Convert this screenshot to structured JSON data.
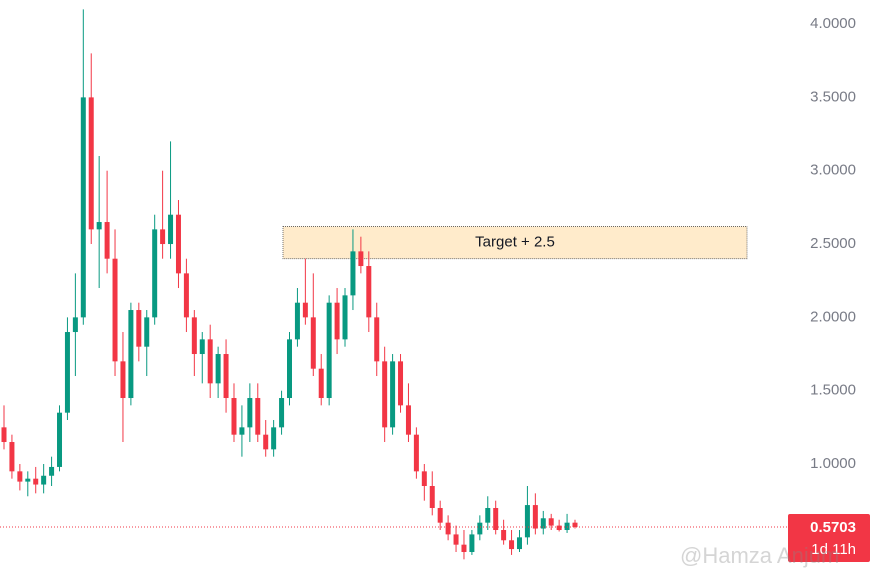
{
  "chart_data": {
    "type": "candlestick",
    "up_color": "#089981",
    "down_color": "#f23645",
    "open": [
      1.25,
      1.15,
      0.95,
      0.88,
      0.9,
      0.86,
      0.92,
      0.98,
      1.35,
      1.9,
      2.0,
      3.5,
      2.6,
      2.65,
      2.4,
      1.7,
      1.45,
      2.05,
      1.8,
      2.0,
      2.6,
      2.5,
      2.7,
      2.3,
      2.0,
      1.75,
      1.85,
      1.55,
      1.75,
      1.45,
      1.2,
      1.25,
      1.45,
      1.2,
      1.1,
      1.25,
      1.45,
      1.85,
      2.1,
      2.0,
      1.65,
      1.45,
      2.1,
      1.85,
      2.15,
      2.45,
      2.35,
      2.0,
      1.7,
      1.25,
      1.7,
      1.4,
      1.2,
      0.95,
      0.85,
      0.7,
      0.6,
      0.52,
      0.45,
      0.4,
      0.52,
      0.6,
      0.7,
      0.55,
      0.48,
      0.42,
      0.5,
      0.72,
      0.56,
      0.63,
      0.58,
      0.55,
      0.6
    ],
    "high": [
      1.4,
      1.2,
      1.0,
      0.95,
      0.98,
      1.0,
      1.05,
      1.4,
      2.0,
      2.3,
      4.1,
      3.8,
      3.1,
      3.0,
      2.6,
      1.9,
      2.1,
      2.1,
      2.05,
      2.7,
      3.0,
      3.2,
      2.8,
      2.4,
      2.05,
      1.9,
      1.95,
      1.8,
      1.85,
      1.55,
      1.4,
      1.55,
      1.55,
      1.3,
      1.3,
      1.5,
      1.9,
      2.2,
      2.4,
      2.3,
      1.75,
      2.15,
      2.2,
      2.2,
      2.6,
      2.55,
      2.45,
      2.1,
      1.8,
      1.75,
      1.75,
      1.55,
      1.25,
      1.0,
      0.95,
      0.75,
      0.65,
      0.58,
      0.55,
      0.55,
      0.65,
      0.78,
      0.75,
      0.62,
      0.55,
      0.55,
      0.85,
      0.8,
      0.68,
      0.66,
      0.62,
      0.66,
      0.62
    ],
    "low": [
      1.1,
      0.9,
      0.82,
      0.78,
      0.8,
      0.8,
      0.85,
      0.95,
      1.3,
      1.6,
      1.95,
      2.5,
      2.2,
      2.3,
      1.6,
      1.15,
      1.4,
      1.7,
      1.6,
      1.95,
      2.4,
      2.4,
      2.2,
      1.9,
      1.6,
      1.55,
      1.45,
      1.45,
      1.35,
      1.15,
      1.05,
      1.15,
      1.15,
      1.05,
      1.05,
      1.2,
      1.4,
      1.8,
      1.95,
      1.6,
      1.4,
      1.4,
      1.75,
      1.8,
      2.05,
      2.3,
      1.9,
      1.6,
      1.15,
      1.2,
      1.35,
      1.15,
      0.9,
      0.75,
      0.65,
      0.55,
      0.48,
      0.4,
      0.35,
      0.38,
      0.48,
      0.55,
      0.52,
      0.45,
      0.38,
      0.4,
      0.45,
      0.52,
      0.52,
      0.55,
      0.54,
      0.53,
      0.56
    ],
    "close": [
      1.15,
      0.95,
      0.88,
      0.9,
      0.86,
      0.92,
      0.98,
      1.35,
      1.9,
      2.0,
      3.5,
      2.6,
      2.65,
      2.4,
      1.7,
      1.45,
      2.05,
      1.8,
      2.0,
      2.6,
      2.5,
      2.7,
      2.3,
      2.0,
      1.75,
      1.85,
      1.55,
      1.75,
      1.45,
      1.2,
      1.25,
      1.45,
      1.2,
      1.1,
      1.25,
      1.45,
      1.85,
      2.1,
      2.0,
      1.65,
      1.45,
      2.1,
      1.85,
      2.15,
      2.45,
      2.35,
      2.0,
      1.7,
      1.25,
      1.7,
      1.4,
      1.2,
      0.95,
      0.85,
      0.7,
      0.6,
      0.52,
      0.45,
      0.4,
      0.52,
      0.6,
      0.7,
      0.55,
      0.48,
      0.42,
      0.5,
      0.72,
      0.56,
      0.63,
      0.58,
      0.55,
      0.6,
      0.5703
    ],
    "ylim": [
      0.175,
      4.164
    ],
    "yticks": [
      {
        "value": 1,
        "label": "1.0000"
      },
      {
        "value": 1.5,
        "label": "1.5000"
      },
      {
        "value": 2,
        "label": "2.0000"
      },
      {
        "value": 2.5,
        "label": "2.5000"
      },
      {
        "value": 3,
        "label": "3.0000"
      },
      {
        "value": 3.5,
        "label": "3.5000"
      },
      {
        "value": 4,
        "label": "4.0000"
      }
    ],
    "annotation": {
      "text": "Target + 2.5",
      "low": 2.4,
      "high": 2.62
    },
    "countdown": "1d 11h",
    "watermark": "@Hamza Anjum"
  }
}
